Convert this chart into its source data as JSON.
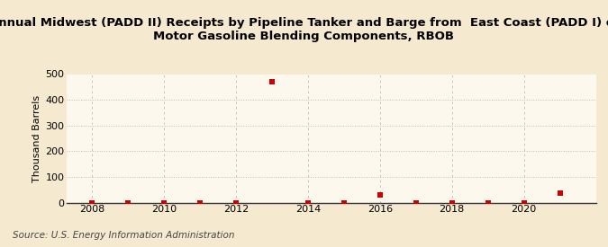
{
  "title_line1": "Annual Midwest (PADD II) Receipts by Pipeline Tanker and Barge from  East Coast (PADD I) of",
  "title_line2": "Motor Gasoline Blending Components, RBOB",
  "ylabel": "Thousand Barrels",
  "source": "Source: U.S. Energy Information Administration",
  "background_color": "#f5ead0",
  "plot_background_color": "#fdf8ee",
  "years": [
    2008,
    2009,
    2010,
    2011,
    2012,
    2013,
    2014,
    2015,
    2016,
    2017,
    2018,
    2019,
    2020,
    2021
  ],
  "values": [
    0,
    0,
    0,
    0,
    0,
    470,
    0,
    0,
    28,
    0,
    0,
    0,
    0,
    38
  ],
  "marker_color": "#cc0000",
  "marker_size": 4,
  "ylim": [
    0,
    500
  ],
  "yticks": [
    0,
    100,
    200,
    300,
    400,
    500
  ],
  "xlim": [
    2007.3,
    2022.0
  ],
  "xticks": [
    2008,
    2010,
    2012,
    2014,
    2016,
    2018,
    2020
  ],
  "grid_color": "#bbbbbb",
  "title_fontsize": 9.5,
  "axis_fontsize": 8,
  "source_fontsize": 7.5
}
